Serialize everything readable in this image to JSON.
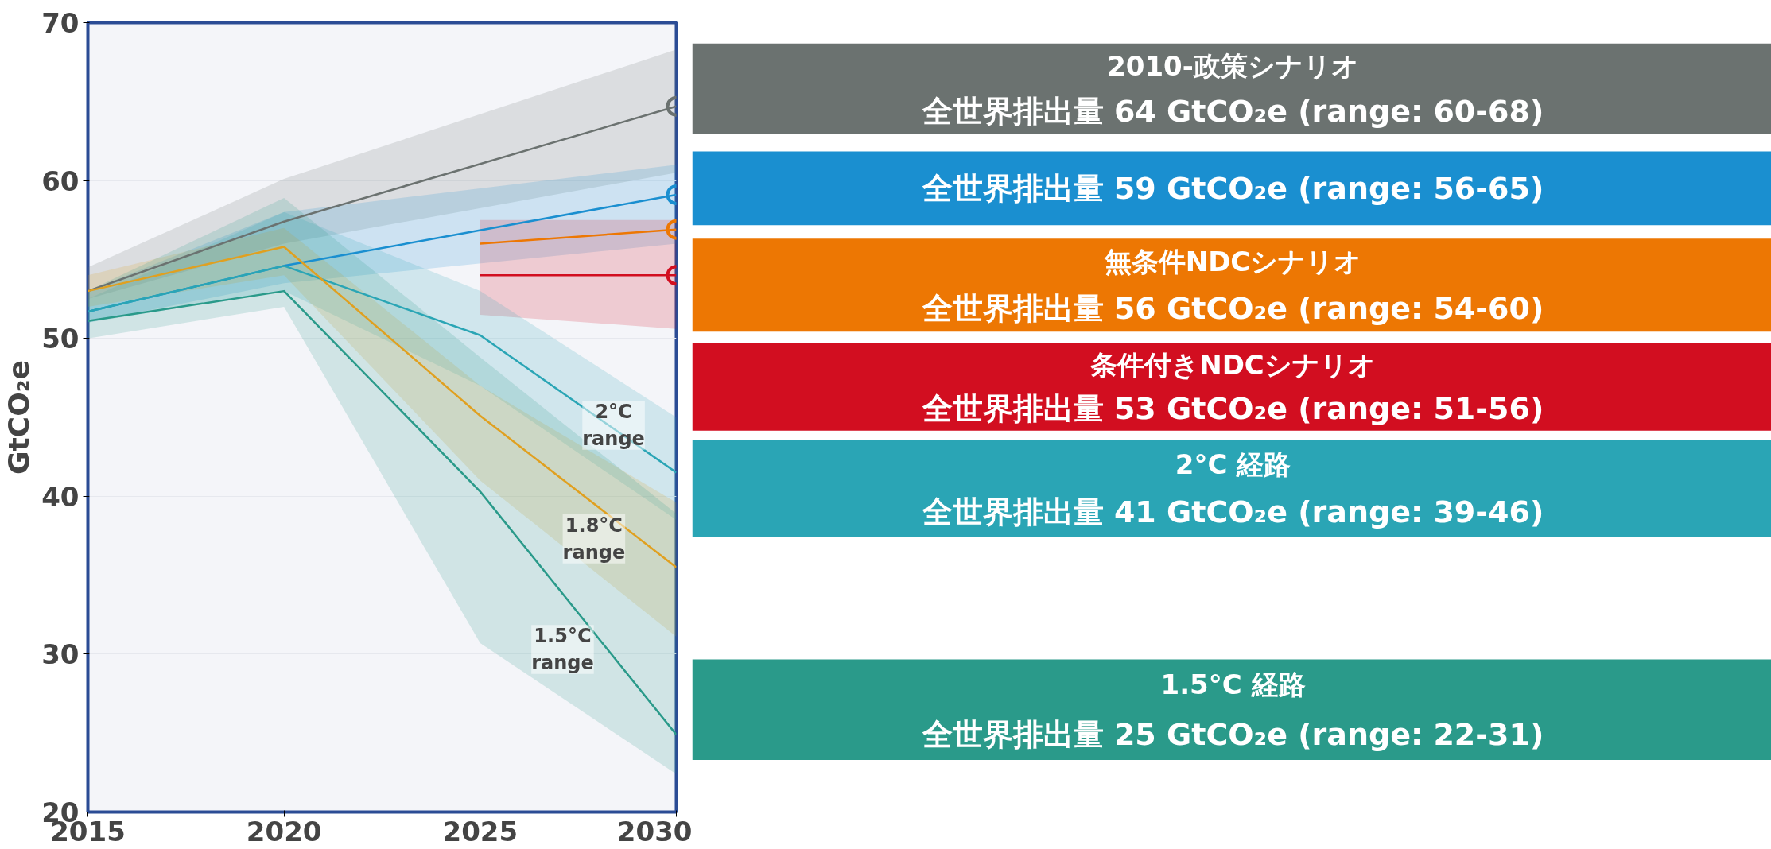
{
  "chart_data": {
    "type": "line",
    "ylabel": "GtCO₂e",
    "xlim": [
      2015,
      2030
    ],
    "ylim": [
      20,
      70
    ],
    "xticks": [
      2015,
      2020,
      2025,
      2030
    ],
    "yticks": [
      20,
      30,
      40,
      50,
      60,
      70
    ],
    "grid": "y",
    "legend": "right",
    "line_style": "solid",
    "series": [
      {
        "name": "全世界排出量 64 GtCO₂e (range: 60-68)",
        "color": "#6b7270",
        "x": [
          2015,
          2020,
          2030
        ],
        "values": [
          53.0,
          57.4,
          64.7
        ],
        "lower": [
          52.5,
          56.0,
          60.5
        ],
        "upper": [
          54.5,
          60.1,
          68.3
        ]
      },
      {
        "name": "全世界排出量 59 GtCO₂e (range: 56-65)",
        "color": "#1a8fd0",
        "x": [
          2015,
          2020,
          2030
        ],
        "values": [
          51.7,
          54.6,
          59.1
        ],
        "lower": [
          51.0,
          53.5,
          56.0
        ],
        "upper": [
          53.0,
          58.0,
          61.0
        ]
      },
      {
        "name": "全世界排出量 56 GtCO₂e (range: 54-60)",
        "color": "#ed7703",
        "x": [
          2025,
          2030
        ],
        "values": [
          56.0,
          56.9
        ]
      },
      {
        "name": "全世界排出量 53 GtCO₂e (range: 51-56)",
        "color": "#d20e20",
        "x": [
          2025,
          2030
        ],
        "values": [
          54.0,
          54.0
        ],
        "lower": [
          51.5,
          50.6
        ],
        "upper": [
          57.5,
          57.5
        ]
      },
      {
        "name": "全世界排出量 41 GtCO₂e (range: 39-46)",
        "color": "#2aa5b5",
        "x": [
          2015,
          2020,
          2025,
          2030
        ],
        "values": [
          51.7,
          54.6,
          50.2,
          41.5
        ],
        "lower": [
          51.0,
          53.0,
          47.0,
          38.5
        ],
        "upper": [
          52.5,
          58.0,
          53.0,
          45.0
        ]
      },
      {
        "color": "#e0a020",
        "x": [
          2015,
          2020,
          2025,
          2030
        ],
        "values": [
          53.0,
          55.8,
          45.1,
          35.5
        ],
        "lower": [
          52.0,
          54.0,
          41.0,
          31.1
        ],
        "upper": [
          54.0,
          57.0,
          47.0,
          39.6
        ]
      },
      {
        "name": "全世界排出量 25 GtCO₂e (range: 22-31)",
        "color": "#2a9a8a",
        "x": [
          2015,
          2020,
          2025,
          2030
        ],
        "values": [
          51.1,
          53.0,
          40.3,
          24.9
        ],
        "lower": [
          50.0,
          52.0,
          30.7,
          22.4
        ],
        "upper": [
          53.0,
          58.9,
          48.8,
          38.9
        ]
      },
      {
        "type": "scatter",
        "marker": "circle",
        "x": [
          2030,
          2030,
          2030,
          2030
        ],
        "values": [
          64.7,
          59.1,
          56.9,
          54.0
        ],
        "colors": [
          "#6b7270",
          "#1a8fd0",
          "#ed7703",
          "#d20e20"
        ]
      }
    ],
    "annotations": [
      "2°C range",
      "1.8°C range",
      "1.5°C range",
      "2010-政策シナリオ",
      "無条件NDCシナリオ",
      "条件付きNDCシナリオ",
      "2°C 経路",
      "1.5°C 経路"
    ]
  }
}
